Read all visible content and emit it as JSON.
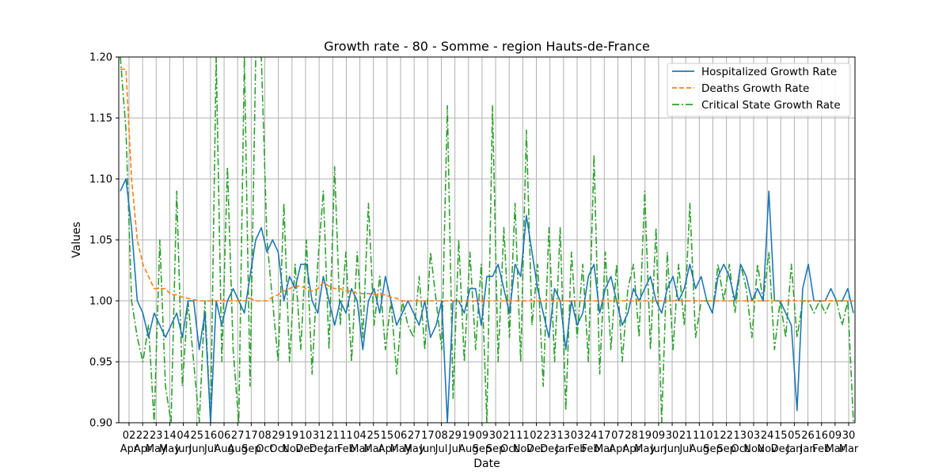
{
  "chart_data": {
    "type": "line",
    "title": "Growth rate - 80 - Somme - region Hauts-de-France",
    "xlabel": "Date",
    "ylabel": "Values",
    "ylim": [
      0.9,
      1.2
    ],
    "yticks": [
      "0.90",
      "0.95",
      "1.00",
      "1.05",
      "1.10",
      "1.15",
      "1.20"
    ],
    "grid": true,
    "legend_position": "top-right",
    "x_tick_labels": [
      {
        "day": "02",
        "month": "Apr"
      },
      {
        "day": "22",
        "month": "Apr"
      },
      {
        "day": "23",
        "month": "May"
      },
      {
        "day": "14",
        "month": "May"
      },
      {
        "day": "04",
        "month": "Jun"
      },
      {
        "day": "25",
        "month": "Jun"
      },
      {
        "day": "16",
        "month": "Jul"
      },
      {
        "day": "06",
        "month": "Aug"
      },
      {
        "day": "27",
        "month": "Aug"
      },
      {
        "day": "17",
        "month": "Sep"
      },
      {
        "day": "08",
        "month": "Oct"
      },
      {
        "day": "29",
        "month": "Oct"
      },
      {
        "day": "19",
        "month": "Nov"
      },
      {
        "day": "10",
        "month": "Dec"
      },
      {
        "day": "31",
        "month": "Dec"
      },
      {
        "day": "21",
        "month": "Jan"
      },
      {
        "day": "11",
        "month": "Feb"
      },
      {
        "day": "04",
        "month": "Mar"
      },
      {
        "day": "25",
        "month": "Mar"
      },
      {
        "day": "15",
        "month": "Apr"
      },
      {
        "day": "06",
        "month": "May"
      },
      {
        "day": "27",
        "month": "May"
      },
      {
        "day": "17",
        "month": "Jun"
      },
      {
        "day": "08",
        "month": "Jul"
      },
      {
        "day": "29",
        "month": "Jul"
      },
      {
        "day": "19",
        "month": "Aug"
      },
      {
        "day": "09",
        "month": "Sep"
      },
      {
        "day": "30",
        "month": "Sep"
      },
      {
        "day": "21",
        "month": "Oct"
      },
      {
        "day": "11",
        "month": "Nov"
      },
      {
        "day": "02",
        "month": "Dec"
      },
      {
        "day": "23",
        "month": "Dec"
      },
      {
        "day": "13",
        "month": "Jan"
      },
      {
        "day": "03",
        "month": "Feb"
      },
      {
        "day": "24",
        "month": "Feb"
      },
      {
        "day": "17",
        "month": "Mar"
      },
      {
        "day": "07",
        "month": "Apr"
      },
      {
        "day": "28",
        "month": "Apr"
      },
      {
        "day": "19",
        "month": "May"
      },
      {
        "day": "09",
        "month": "Jun"
      },
      {
        "day": "30",
        "month": "Jun"
      },
      {
        "day": "21",
        "month": "Jul"
      },
      {
        "day": "11",
        "month": "Aug"
      },
      {
        "day": "01",
        "month": "Sep"
      },
      {
        "day": "22",
        "month": "Sep"
      },
      {
        "day": "13",
        "month": "Oct"
      },
      {
        "day": "03",
        "month": "Nov"
      },
      {
        "day": "24",
        "month": "Nov"
      },
      {
        "day": "15",
        "month": "Dec"
      },
      {
        "day": "05",
        "month": "Jan"
      },
      {
        "day": "26",
        "month": "Jan"
      },
      {
        "day": "16",
        "month": "Feb"
      },
      {
        "day": "09",
        "month": "Mar"
      },
      {
        "day": "30",
        "month": "Mar"
      }
    ],
    "series": [
      {
        "name": "Hospitalized Growth Rate",
        "color": "#1f77b4",
        "style": "solid",
        "values": [
          1.09,
          1.1,
          1.06,
          1.0,
          0.99,
          0.97,
          0.99,
          0.98,
          0.97,
          0.98,
          0.99,
          0.97,
          1.0,
          1.0,
          0.96,
          0.99,
          0.9,
          1.0,
          0.98,
          1.0,
          1.01,
          1.0,
          0.99,
          1.02,
          1.05,
          1.06,
          1.04,
          1.05,
          1.04,
          1.0,
          1.02,
          1.01,
          1.03,
          1.03,
          1.0,
          0.99,
          1.02,
          1.0,
          0.98,
          1.0,
          0.99,
          1.01,
          1.0,
          0.96,
          1.0,
          1.01,
          0.99,
          1.02,
          1.0,
          0.98,
          0.99,
          1.0,
          0.99,
          0.98,
          1.0,
          0.97,
          0.98,
          1.0,
          0.9,
          1.0,
          1.0,
          0.99,
          1.01,
          1.01,
          0.98,
          1.02,
          1.02,
          1.03,
          1.01,
          0.99,
          1.03,
          1.02,
          1.07,
          1.04,
          1.01,
          0.99,
          0.97,
          1.01,
          1.0,
          0.96,
          1.0,
          0.98,
          0.99,
          1.02,
          1.03,
          0.99,
          1.01,
          1.02,
          1.0,
          0.98,
          0.99,
          1.01,
          1.0,
          1.01,
          1.02,
          1.0,
          0.99,
          1.01,
          1.02,
          1.0,
          1.01,
          1.03,
          1.01,
          1.02,
          1.0,
          0.99,
          1.02,
          1.03,
          1.02,
          1.0,
          1.03,
          1.02,
          1.0,
          1.01,
          1.0,
          1.09,
          1.0,
          1.0,
          0.99,
          0.98,
          0.91,
          1.01,
          1.03,
          1.0,
          1.0,
          1.0,
          1.01,
          1.0,
          1.0,
          1.01,
          0.99
        ]
      },
      {
        "name": "Deaths Growth Rate",
        "color": "#ff7f0e",
        "style": "dashed",
        "values": [
          1.19,
          1.19,
          1.1,
          1.05,
          1.03,
          1.02,
          1.01,
          1.01,
          1.01,
          1.005,
          1.005,
          1.003,
          1.002,
          1.001,
          1.0,
          1.0,
          1.0,
          1.0,
          1.0,
          1.0,
          1.0,
          1.0,
          1.0,
          1.002,
          1.0,
          1.0,
          1.0,
          1.003,
          1.005,
          1.008,
          1.01,
          1.012,
          1.012,
          1.01,
          1.008,
          1.01,
          1.015,
          1.012,
          1.01,
          1.01,
          1.008,
          1.008,
          1.006,
          1.006,
          1.006,
          1.005,
          1.005,
          1.005,
          1.003,
          1.002,
          1.0,
          1.0,
          1.0,
          1.0,
          1.0,
          1.0,
          1.0,
          1.0,
          1.0,
          1.0,
          1.0,
          1.0,
          1.0,
          1.0,
          1.0,
          1.0,
          1.0,
          1.0,
          1.0,
          1.0,
          1.0,
          1.0,
          1.0,
          1.0,
          1.0,
          1.0,
          1.0,
          1.0,
          1.0,
          1.0,
          1.0,
          1.0,
          1.0,
          1.0,
          1.0,
          1.0,
          1.0,
          1.0,
          1.0,
          1.0,
          1.0,
          1.0,
          1.0,
          1.0,
          1.0,
          1.0,
          1.0,
          1.0,
          1.0,
          1.0,
          1.0,
          1.0,
          1.0,
          1.0,
          1.0,
          1.0,
          1.0,
          1.0,
          1.0,
          1.0,
          1.0,
          1.0,
          1.0,
          1.0,
          1.0,
          1.0,
          1.0,
          1.0,
          1.0,
          1.0,
          1.0,
          1.0,
          1.0,
          1.0,
          1.0,
          1.0,
          1.0,
          1.0,
          1.0,
          1.0,
          1.0
        ]
      },
      {
        "name": "Critical State Growth Rate",
        "color": "#2ca02c",
        "style": "dashdot",
        "values": [
          1.2,
          1.14,
          1.0,
          0.97,
          0.95,
          0.98,
          0.9,
          1.05,
          0.93,
          0.9,
          1.09,
          0.93,
          1.0,
          0.95,
          0.9,
          1.0,
          0.9,
          1.2,
          0.95,
          1.11,
          0.96,
          0.9,
          1.2,
          0.93,
          1.2,
          1.2,
          1.05,
          1.0,
          0.95,
          1.08,
          0.95,
          1.03,
          0.96,
          1.05,
          0.94,
          1.03,
          1.09,
          0.96,
          1.11,
          0.98,
          1.04,
          0.95,
          1.04,
          0.97,
          1.08,
          0.98,
          1.02,
          0.96,
          1.0,
          0.94,
          1.0,
          0.98,
          0.97,
          1.02,
          0.96,
          1.04,
          1.0,
          0.96,
          1.16,
          0.92,
          1.05,
          0.95,
          1.04,
          0.96,
          1.03,
          0.9,
          1.16,
          0.95,
          1.06,
          0.97,
          1.08,
          0.95,
          1.14,
          0.98,
          1.03,
          0.93,
          1.06,
          0.95,
          1.06,
          0.91,
          1.04,
          0.97,
          1.03,
          0.95,
          1.12,
          0.94,
          1.04,
          0.96,
          1.03,
          0.95,
          1.01,
          1.03,
          0.97,
          1.09,
          0.96,
          1.06,
          0.9,
          1.04,
          0.96,
          1.03,
          0.98,
          1.08,
          0.97,
          1.0,
          1.0,
          0.99,
          1.03,
          1.0,
          1.03,
          0.99,
          1.03,
          1.01,
          0.97,
          1.03,
          1.0,
          1.04,
          0.96,
          1.0,
          0.97,
          1.03,
          0.97,
          1.0,
          1.0,
          0.99,
          1.0,
          0.99,
          1.0,
          1.0,
          0.98,
          1.0,
          0.9
        ]
      }
    ]
  }
}
